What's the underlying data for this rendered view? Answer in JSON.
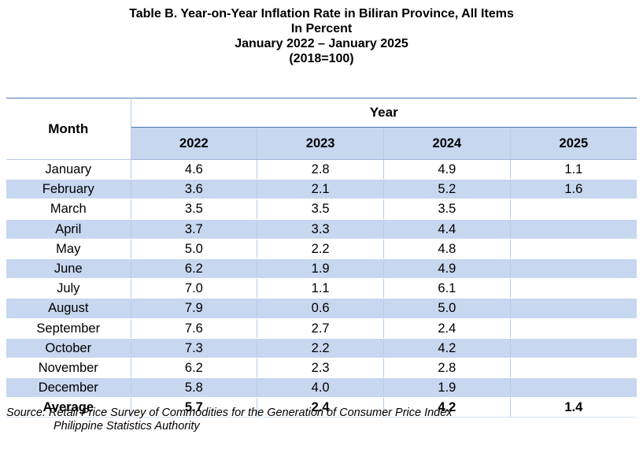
{
  "title": {
    "line1": "Table B. Year-on-Year Inflation Rate in Biliran Province, All Items",
    "line2": "In Percent",
    "line3": "January 2022 – January 2025",
    "line4": "(2018=100)"
  },
  "table": {
    "month_header": "Month",
    "year_header": "Year",
    "years": [
      "2022",
      "2023",
      "2024",
      "2025"
    ],
    "rows": [
      {
        "month": "January",
        "values": [
          "4.6",
          "2.8",
          "4.9",
          "1.1"
        ]
      },
      {
        "month": "February",
        "values": [
          "3.6",
          "2.1",
          "5.2",
          "1.6"
        ]
      },
      {
        "month": "March",
        "values": [
          "3.5",
          "3.5",
          "3.5",
          ""
        ]
      },
      {
        "month": "April",
        "values": [
          "3.7",
          "3.3",
          "4.4",
          ""
        ]
      },
      {
        "month": "May",
        "values": [
          "5.0",
          "2.2",
          "4.8",
          ""
        ]
      },
      {
        "month": "June",
        "values": [
          "6.2",
          "1.9",
          "4.9",
          ""
        ]
      },
      {
        "month": "July",
        "values": [
          "7.0",
          "1.1",
          "6.1",
          ""
        ]
      },
      {
        "month": "August",
        "values": [
          "7.9",
          "0.6",
          "5.0",
          ""
        ]
      },
      {
        "month": "September",
        "values": [
          "7.6",
          "2.7",
          "2.4",
          ""
        ]
      },
      {
        "month": "October",
        "values": [
          "7.3",
          "2.2",
          "4.2",
          ""
        ]
      },
      {
        "month": "November",
        "values": [
          "6.2",
          "2.3",
          "2.8",
          ""
        ]
      },
      {
        "month": "December",
        "values": [
          "5.8",
          "4.0",
          "1.9",
          ""
        ]
      }
    ],
    "average": {
      "label": "Average",
      "values": [
        "5.7",
        "2.4",
        "4.2",
        "1.4"
      ]
    }
  },
  "source": {
    "line1": "Source: Retail Price Survey of Commodities for the Generation of Consumer Price Index",
    "line2": "Philippine Statistics Authority"
  },
  "colors": {
    "row_shade": "#c6d7ef",
    "header_rule": "#4a78b5"
  }
}
